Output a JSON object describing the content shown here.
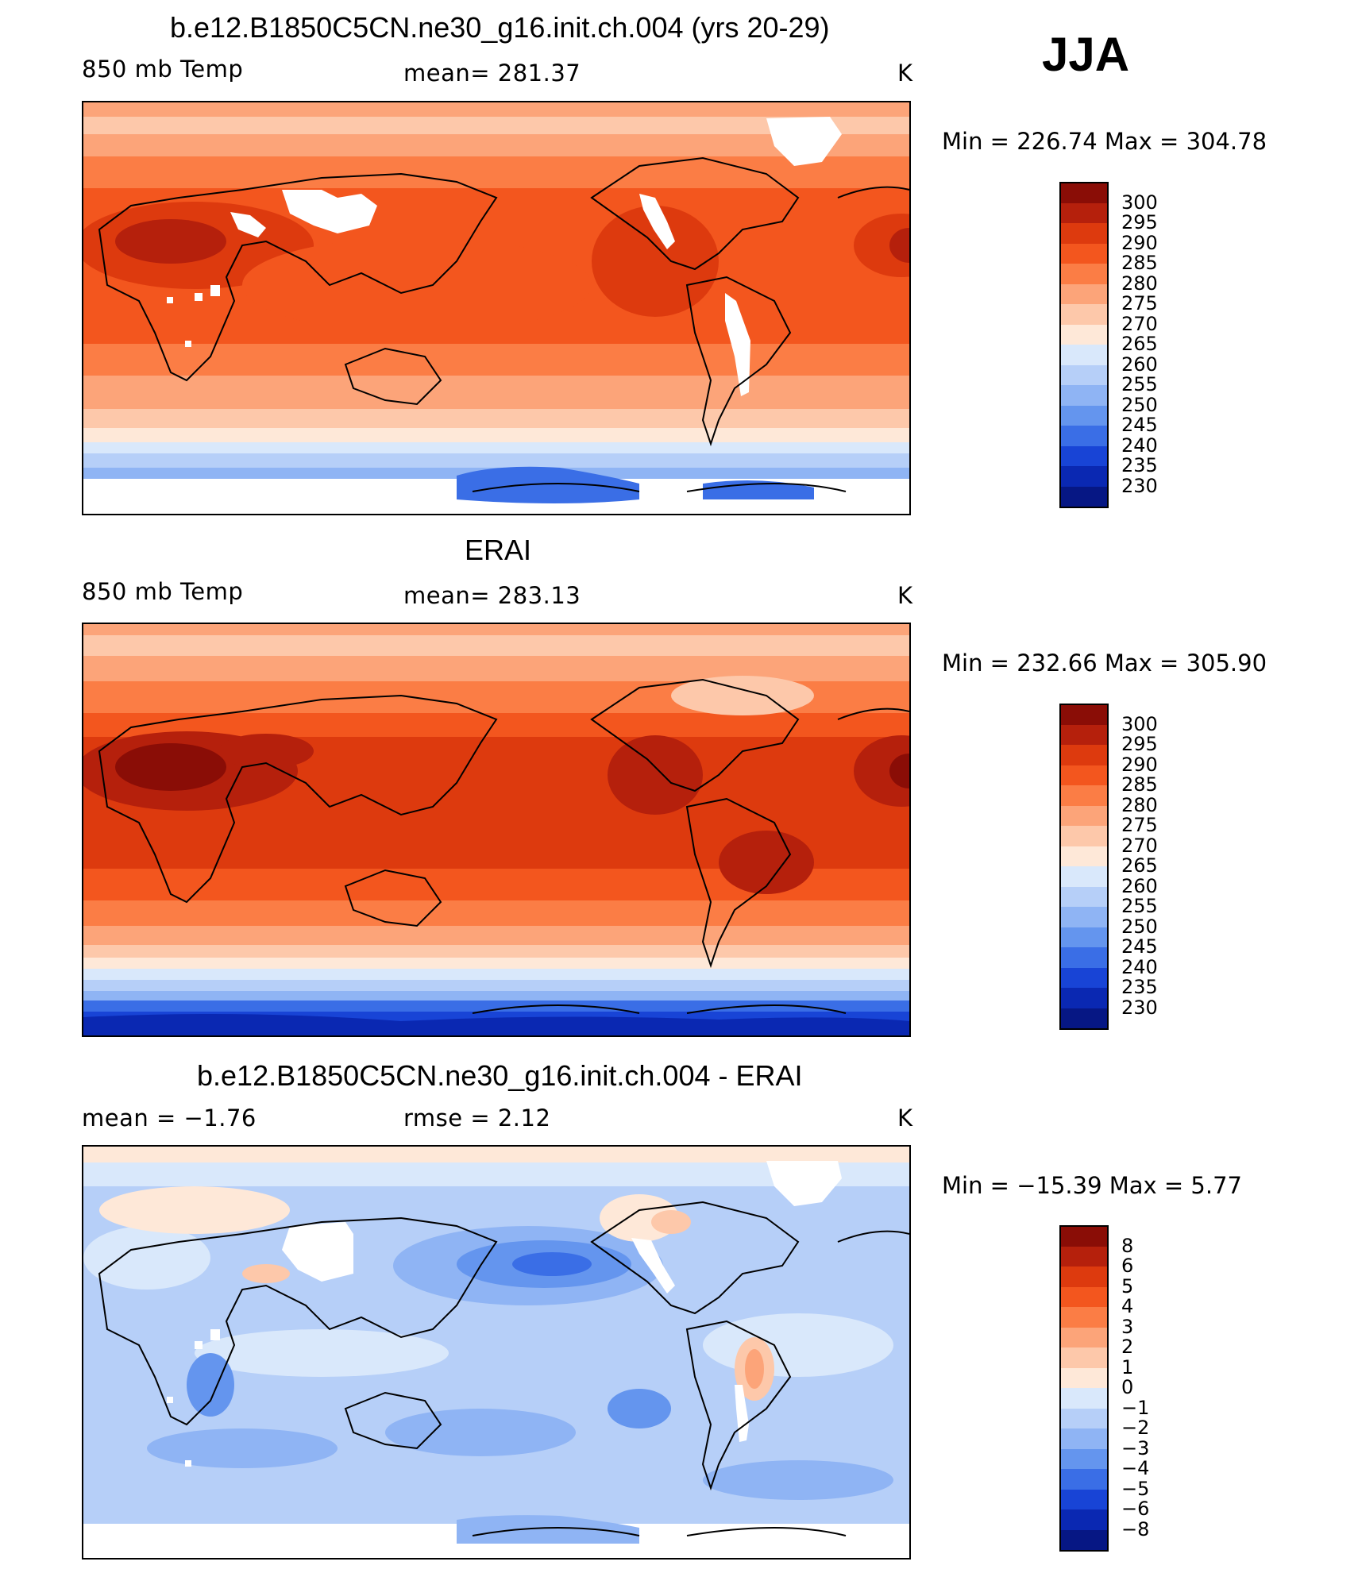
{
  "season": "JJA",
  "panels": [
    {
      "title": "b.e12.B1850C5CN.ne30_g16.init.ch.004 (yrs 20-29)",
      "left_label": "850 mb Temp",
      "center_label": "mean=  281.37",
      "right_label": "K",
      "minmax": "Min  =  226.74  Max  =  304.78"
    },
    {
      "title": "ERAI",
      "left_label": "850 mb Temp",
      "center_label": "mean=  283.13",
      "right_label": "K",
      "minmax": "Min  =  232.66  Max  =  305.90"
    },
    {
      "title": "b.e12.B1850C5CN.ne30_g16.init.ch.004 - ERAI",
      "left_label": "mean  =    −1.76",
      "center_label": "rmse  =     2.12",
      "right_label": "K",
      "minmax": "Min  =  −15.39  Max  =     5.77"
    }
  ],
  "chart_data": [
    {
      "type": "heatmap",
      "title": "b.e12.B1850C5CN.ne30_g16.init.ch.004 (yrs 20-29)",
      "variable": "850 mb Temp",
      "units": "K",
      "mean": 281.37,
      "min": 226.74,
      "max": 304.78,
      "colorbar_levels": [
        "300",
        "295",
        "290",
        "285",
        "280",
        "275",
        "270",
        "265",
        "260",
        "255",
        "250",
        "245",
        "240",
        "235",
        "230"
      ]
    },
    {
      "type": "heatmap",
      "title": "ERAI",
      "variable": "850 mb Temp",
      "units": "K",
      "mean": 283.13,
      "min": 232.66,
      "max": 305.9,
      "colorbar_levels": [
        "300",
        "295",
        "290",
        "285",
        "280",
        "275",
        "270",
        "265",
        "260",
        "255",
        "250",
        "245",
        "240",
        "235",
        "230"
      ]
    },
    {
      "type": "heatmap",
      "title": "b.e12.B1850C5CN.ne30_g16.init.ch.004 - ERAI",
      "units": "K",
      "mean": -1.76,
      "rmse": 2.12,
      "min": -15.39,
      "max": 5.77,
      "colorbar_levels": [
        "8",
        "6",
        "5",
        "4",
        "3",
        "2",
        "1",
        "0",
        "−1",
        "−2",
        "−3",
        "−4",
        "−5",
        "−6",
        "−8"
      ]
    }
  ],
  "colors": {
    "temp_scale": [
      "#8a0d06",
      "#b5200c",
      "#dd3a0e",
      "#f3561e",
      "#fb7d45",
      "#fca479",
      "#fdc8aa",
      "#fee8d8",
      "#d9e8fb",
      "#b6cff8",
      "#8fb4f4",
      "#6495ee",
      "#3a6ee6",
      "#1844d6",
      "#0a28b2",
      "#061784"
    ],
    "diff_scale": [
      "#8a0d06",
      "#b5200c",
      "#dd3a0e",
      "#f3561e",
      "#fb7d45",
      "#fca479",
      "#fdc8aa",
      "#fee8d8",
      "#d9e8fb",
      "#b6cff8",
      "#8fb4f4",
      "#6495ee",
      "#3a6ee6",
      "#1844d6",
      "#0a28b2",
      "#061784"
    ]
  }
}
